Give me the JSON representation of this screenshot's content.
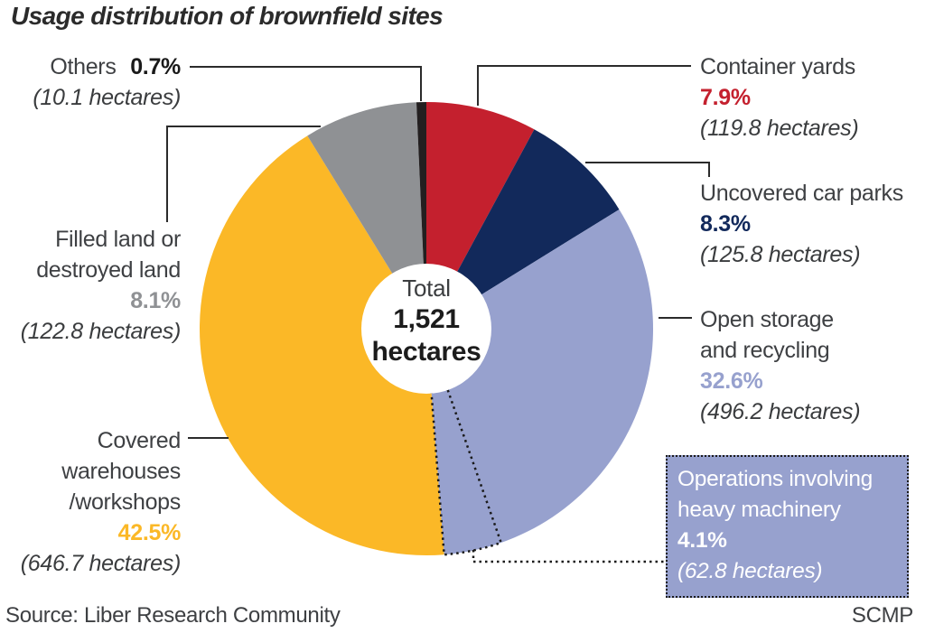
{
  "title": "Usage distribution of brownfield sites",
  "source": "Source: Liber Research Community",
  "credit": "SCMP",
  "center": {
    "line1": "Total",
    "line2": "1,521",
    "line3": "hectares"
  },
  "colors": {
    "container_yards": "#c4202e",
    "uncovered_car_parks": "#12295b",
    "open_storage": "#97a1ce",
    "covered_warehouses": "#fbb827",
    "filled_land": "#8f9194",
    "others": "#231f20",
    "leader_line": "#2b2b2b",
    "box_text": "#ffffff",
    "background": "#ffffff"
  },
  "chart_data": {
    "type": "pie",
    "title": "Usage distribution of brownfield sites",
    "total_hectares": 1521,
    "total_label": "Total 1,521 hectares",
    "donut": true,
    "start_at": "12 o'clock, clockwise",
    "segments": [
      {
        "id": "container_yards",
        "label": "Container yards",
        "label_lines": [
          "Container yards"
        ],
        "pct": 7.9,
        "pct_label": "7.9%",
        "hectares": 119.8,
        "hectares_label": "(119.8 hectares)",
        "color": "#c4202e"
      },
      {
        "id": "uncovered_car_parks",
        "label": "Uncovered car parks",
        "label_lines": [
          "Uncovered car parks"
        ],
        "pct": 8.3,
        "pct_label": "8.3%",
        "hectares": 125.8,
        "hectares_label": "(125.8 hectares)",
        "color": "#12295b"
      },
      {
        "id": "open_storage",
        "label": "Open storage and recycling",
        "label_lines": [
          "Open storage",
          "and recycling"
        ],
        "pct": 32.6,
        "pct_label": "32.6%",
        "hectares": 496.2,
        "hectares_label": "(496.2 hectares)",
        "color": "#97a1ce"
      },
      {
        "id": "covered_warehouses",
        "label": "Covered warehouses /workshops",
        "label_lines": [
          "Covered",
          "warehouses",
          "/workshops"
        ],
        "pct": 42.5,
        "pct_label": "42.5%",
        "hectares": 646.7,
        "hectares_label": "(646.7 hectares)",
        "color": "#fbb827"
      },
      {
        "id": "filled_land",
        "label": "Filled land or destroyed land",
        "label_lines": [
          "Filled land or",
          "destroyed land"
        ],
        "pct": 8.1,
        "pct_label": "8.1%",
        "hectares": 122.8,
        "hectares_label": "(122.8 hectares)",
        "color": "#8f9194"
      },
      {
        "id": "others",
        "label": "Others",
        "label_lines": [
          "Others"
        ],
        "pct": 0.7,
        "pct_label": "0.7%",
        "hectares": 10.1,
        "hectares_label": "(10.1 hectares)",
        "color": "#231f20"
      }
    ],
    "sub_segment": {
      "id": "heavy_machinery",
      "parent": "open_storage",
      "label": "Operations involving heavy machinery",
      "label_lines": [
        "Operations involving",
        "heavy machinery"
      ],
      "pct": 4.1,
      "pct_label": "4.1%",
      "hectares": 62.8,
      "hectares_label": "(62.8 hectares)",
      "color": "#97a1ce",
      "outline": "dotted",
      "position": "last 4.1% of open_storage slice"
    }
  }
}
